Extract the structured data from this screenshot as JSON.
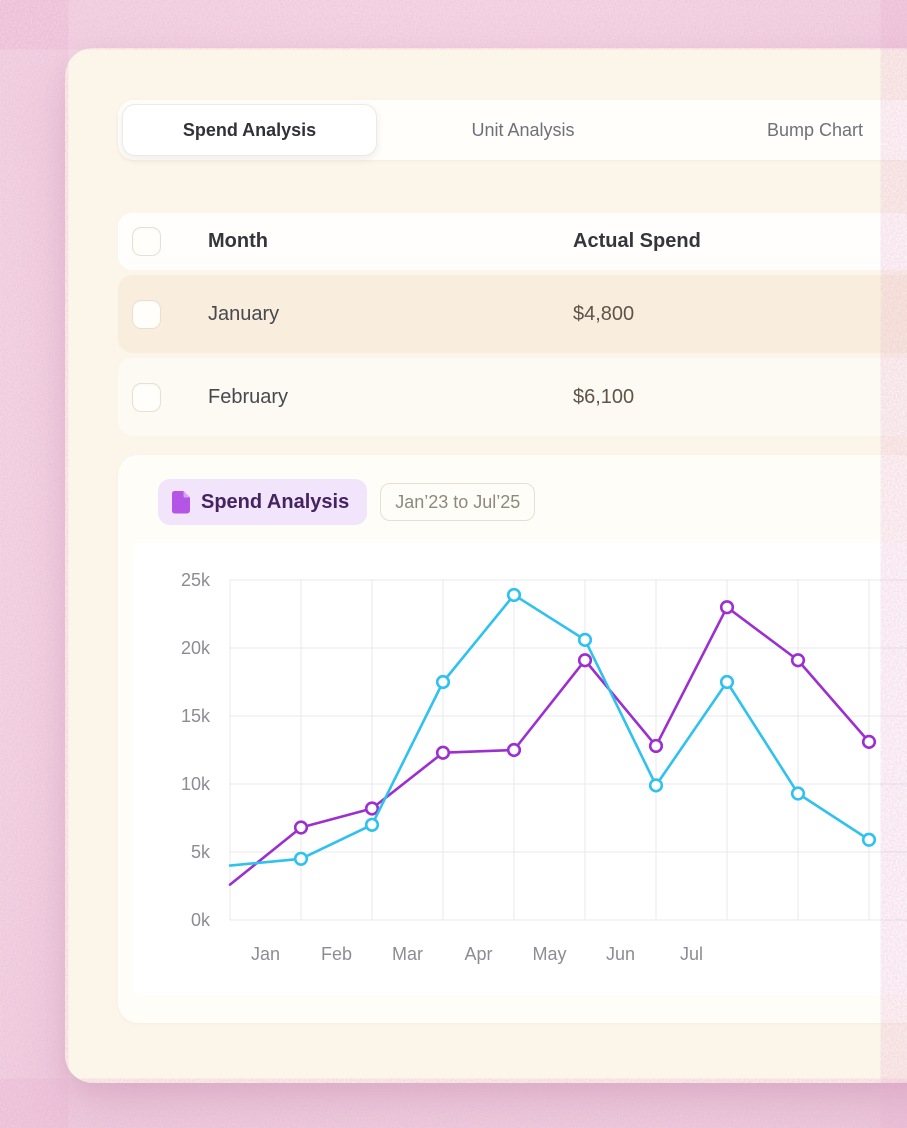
{
  "tabs": [
    {
      "label": "Spend Analysis",
      "active": true
    },
    {
      "label": "Unit Analysis",
      "active": false
    },
    {
      "label": "Bump Chart",
      "active": false
    }
  ],
  "table": {
    "columns": {
      "month": "Month",
      "actual_spend": "Actual Spend"
    },
    "rows": [
      {
        "month": "January",
        "actual_spend": "$4,800",
        "checked": false
      },
      {
        "month": "February",
        "actual_spend": "$6,100",
        "checked": false
      }
    ]
  },
  "chart_card": {
    "title": "Spend Analysis",
    "range_badge": "Jan’23 to Jul’25"
  },
  "chart_data": {
    "type": "line",
    "title": "Spend Analysis",
    "x_labels": [
      "Jan",
      "Feb",
      "Mar",
      "Apr",
      "May",
      "Jun",
      "Jul"
    ],
    "y_tick_labels": [
      "0k",
      "5k",
      "10k",
      "15k",
      "20k",
      "25k"
    ],
    "ylim": [
      0,
      25000
    ],
    "y_step": 5000,
    "grid": true,
    "legend": "none",
    "clipped_right": true,
    "series": [
      {
        "id": "purple-series",
        "color": "#9c2fd0",
        "edge_start_value": 2600,
        "values": [
          6800,
          8200,
          12300,
          12500,
          19100,
          12800,
          23000,
          19100,
          13100
        ]
      },
      {
        "id": "cyan-series",
        "color": "#2fc2ee",
        "edge_start_value": 4000,
        "values": [
          4500,
          7000,
          17500,
          23900,
          20600,
          9900,
          17500,
          9300,
          5900
        ]
      }
    ]
  },
  "colors": {
    "page_pink": "#f3d4e3",
    "card_cream": "#fcf5ea",
    "row_highlight": "#f9eede",
    "pill_purple_bg": "#f2e4fa",
    "pill_purple_text": "#452360",
    "series_cyan": "#2fc2ee",
    "series_purple": "#9c2fd0",
    "grid_line": "#e9e9ee",
    "axis_text": "#8c8c94"
  }
}
